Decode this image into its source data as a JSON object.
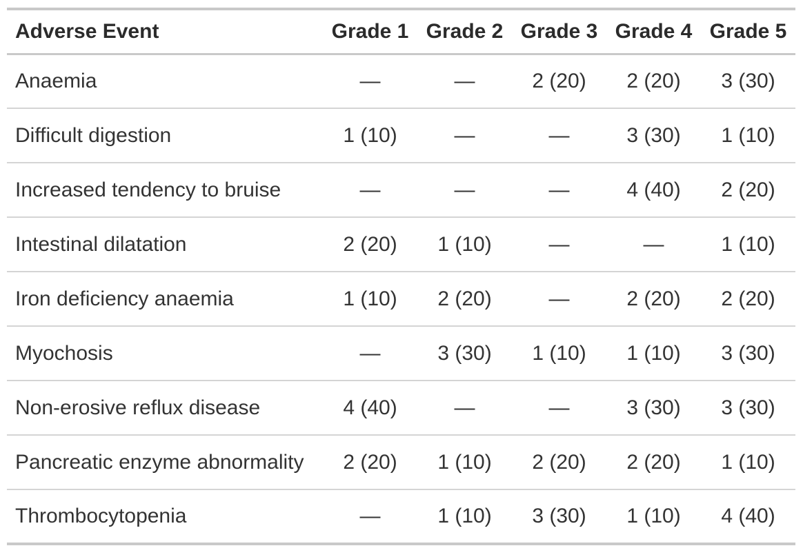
{
  "colors": {
    "text": "#333333",
    "header_text": "#2b2b2b",
    "border_strong": "#c9c9c9",
    "border_light": "#d4d4d4",
    "background": "#ffffff"
  },
  "table": {
    "columns": [
      "Adverse Event",
      "Grade 1",
      "Grade 2",
      "Grade 3",
      "Grade 4",
      "Grade 5"
    ],
    "rows": [
      {
        "event": "Anaemia",
        "values": [
          "—",
          "—",
          "2 (20)",
          "2 (20)",
          "3 (30)"
        ]
      },
      {
        "event": "Difficult digestion",
        "values": [
          "1 (10)",
          "—",
          "—",
          "3 (30)",
          "1 (10)"
        ]
      },
      {
        "event": "Increased tendency to bruise",
        "values": [
          "—",
          "—",
          "—",
          "4 (40)",
          "2 (20)"
        ]
      },
      {
        "event": "Intestinal dilatation",
        "values": [
          "2 (20)",
          "1 (10)",
          "—",
          "—",
          "1 (10)"
        ]
      },
      {
        "event": "Iron deficiency anaemia",
        "values": [
          "1 (10)",
          "2 (20)",
          "—",
          "2 (20)",
          "2 (20)"
        ]
      },
      {
        "event": "Myochosis",
        "values": [
          "—",
          "3 (30)",
          "1 (10)",
          "1 (10)",
          "3 (30)"
        ]
      },
      {
        "event": "Non-erosive reflux disease",
        "values": [
          "4 (40)",
          "—",
          "—",
          "3 (30)",
          "3 (30)"
        ]
      },
      {
        "event": "Pancreatic enzyme abnormality",
        "values": [
          "2 (20)",
          "1 (10)",
          "2 (20)",
          "2 (20)",
          "1 (10)"
        ]
      },
      {
        "event": "Thrombocytopenia",
        "values": [
          "—",
          "1 (10)",
          "3 (30)",
          "1 (10)",
          "4 (40)"
        ]
      }
    ]
  },
  "chart_data": {
    "type": "table",
    "columns": [
      "Adverse Event",
      "Grade 1",
      "Grade 2",
      "Grade 3",
      "Grade 4",
      "Grade 5"
    ],
    "rows": [
      [
        "Anaemia",
        "—",
        "—",
        "2 (20)",
        "2 (20)",
        "3 (30)"
      ],
      [
        "Difficult digestion",
        "1 (10)",
        "—",
        "—",
        "3 (30)",
        "1 (10)"
      ],
      [
        "Increased tendency to bruise",
        "—",
        "—",
        "—",
        "4 (40)",
        "2 (20)"
      ],
      [
        "Intestinal dilatation",
        "2 (20)",
        "1 (10)",
        "—",
        "—",
        "1 (10)"
      ],
      [
        "Iron deficiency anaemia",
        "1 (10)",
        "2 (20)",
        "—",
        "2 (20)",
        "2 (20)"
      ],
      [
        "Myochosis",
        "—",
        "3 (30)",
        "1 (10)",
        "1 (10)",
        "3 (30)"
      ],
      [
        "Non-erosive reflux disease",
        "4 (40)",
        "—",
        "—",
        "3 (30)",
        "3 (30)"
      ],
      [
        "Pancreatic enzyme abnormality",
        "2 (20)",
        "1 (10)",
        "2 (20)",
        "2 (20)",
        "1 (10)"
      ],
      [
        "Thrombocytopenia",
        "—",
        "1 (10)",
        "3 (30)",
        "1 (10)",
        "4 (40)"
      ]
    ]
  }
}
